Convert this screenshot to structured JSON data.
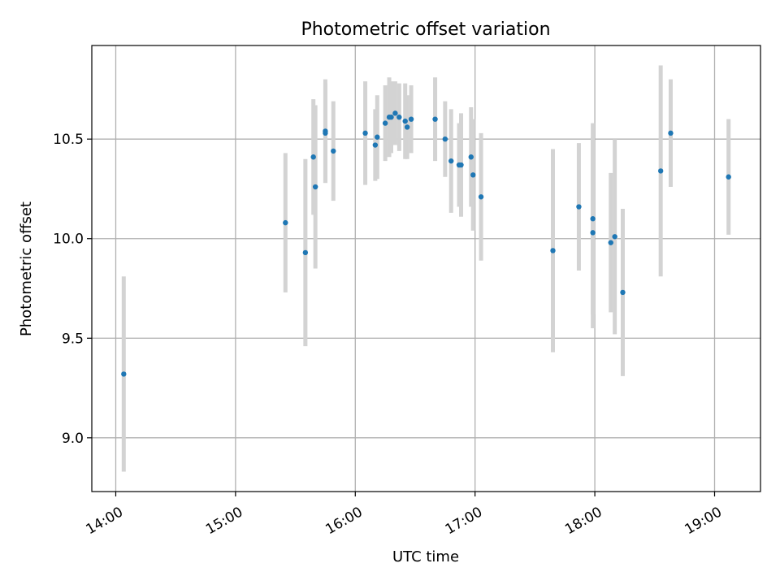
{
  "chart_data": {
    "type": "scatter",
    "title": "Photometric offset variation",
    "xlabel": "UTC time",
    "ylabel": "Photometric offset",
    "xlim": [
      "13:48",
      "19:23"
    ],
    "ylim": [
      8.73,
      10.97
    ],
    "x_ticks": [
      "14:00",
      "15:00",
      "16:00",
      "17:00",
      "18:00",
      "19:00"
    ],
    "y_ticks": [
      9.0,
      9.5,
      10.0,
      10.5
    ],
    "grid": true,
    "colors": {
      "point": "#1f77b4",
      "errorbar": "#d3d3d3",
      "grid": "#b0b0b0"
    },
    "points": [
      {
        "x": "14:04",
        "y": 9.32,
        "err": 0.49
      },
      {
        "x": "15:25",
        "y": 10.08,
        "err": 0.35
      },
      {
        "x": "15:35",
        "y": 9.93,
        "err": 0.47
      },
      {
        "x": "15:39",
        "y": 10.41,
        "err": 0.29
      },
      {
        "x": "15:40",
        "y": 10.26,
        "err": 0.41
      },
      {
        "x": "15:45",
        "y": 10.54,
        "err": 0.26
      },
      {
        "x": "15:45",
        "y": 10.53,
        "err": 0.25
      },
      {
        "x": "15:49",
        "y": 10.44,
        "err": 0.25
      },
      {
        "x": "16:05",
        "y": 10.53,
        "err": 0.26
      },
      {
        "x": "16:10",
        "y": 10.47,
        "err": 0.18
      },
      {
        "x": "16:11",
        "y": 10.51,
        "err": 0.21
      },
      {
        "x": "16:15",
        "y": 10.58,
        "err": 0.19
      },
      {
        "x": "16:17",
        "y": 10.61,
        "err": 0.2
      },
      {
        "x": "16:18",
        "y": 10.61,
        "err": 0.18
      },
      {
        "x": "16:20",
        "y": 10.63,
        "err": 0.16
      },
      {
        "x": "16:22",
        "y": 10.61,
        "err": 0.17
      },
      {
        "x": "16:25",
        "y": 10.59,
        "err": 0.19
      },
      {
        "x": "16:26",
        "y": 10.56,
        "err": 0.16
      },
      {
        "x": "16:28",
        "y": 10.6,
        "err": 0.17
      },
      {
        "x": "16:40",
        "y": 10.6,
        "err": 0.21
      },
      {
        "x": "16:45",
        "y": 10.5,
        "err": 0.19
      },
      {
        "x": "16:48",
        "y": 10.39,
        "err": 0.26
      },
      {
        "x": "16:52",
        "y": 10.37,
        "err": 0.21
      },
      {
        "x": "16:53",
        "y": 10.37,
        "err": 0.26
      },
      {
        "x": "16:58",
        "y": 10.41,
        "err": 0.25
      },
      {
        "x": "16:59",
        "y": 10.32,
        "err": 0.28
      },
      {
        "x": "17:03",
        "y": 10.21,
        "err": 0.32
      },
      {
        "x": "17:39",
        "y": 9.94,
        "err": 0.51
      },
      {
        "x": "17:52",
        "y": 10.16,
        "err": 0.32
      },
      {
        "x": "17:59",
        "y": 10.1,
        "err": 0.48
      },
      {
        "x": "17:59",
        "y": 10.03,
        "err": 0.48
      },
      {
        "x": "18:08",
        "y": 9.98,
        "err": 0.35
      },
      {
        "x": "18:10",
        "y": 10.01,
        "err": 0.49
      },
      {
        "x": "18:14",
        "y": 9.73,
        "err": 0.42
      },
      {
        "x": "18:33",
        "y": 10.34,
        "err": 0.53
      },
      {
        "x": "18:38",
        "y": 10.53,
        "err": 0.27
      },
      {
        "x": "19:07",
        "y": 10.31,
        "err": 0.29
      }
    ]
  }
}
